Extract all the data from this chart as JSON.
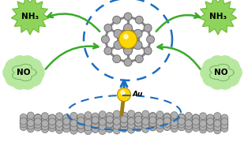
{
  "bg_color": "#ffffff",
  "fig_width": 3.14,
  "fig_height": 1.89,
  "dpi": 100,
  "graphene_color": "#888888",
  "graphene_atom_fc": "#b0b0b0",
  "graphene_atom_ec": "#707070",
  "au_color": "#FFD700",
  "au_stick_color": "#9a8010",
  "au_label": "Au",
  "dashed_blue_color": "#1a6ec0",
  "ring_bond_color": "#888888",
  "ring_atom_fc": "#aaaaaa",
  "ring_atom_ec": "#606060",
  "ring_au_color": "#FFD700",
  "blue_arrow_color": "#1a6ec0",
  "nh3_star_color": "#8ed45a",
  "nh3_star_edge": "#6ab830",
  "nh3_text": "NH₃",
  "no_cloud_color": "#b8e8a0",
  "no_cloud_edge": "#7aba60",
  "no_text": "NO",
  "green_arrow_color": "#3aaa2a"
}
